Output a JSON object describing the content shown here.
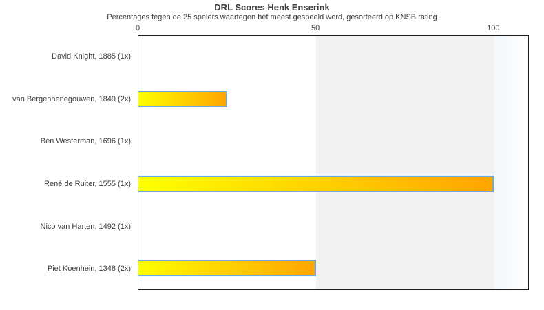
{
  "chart_data": {
    "type": "bar",
    "orientation": "horizontal",
    "title": "DRL Scores Henk Enserink",
    "subtitle": "Percentages tegen de 25 spelers waartegen het meest gespeeld werd, gesorteerd op KNSB rating",
    "categories": [
      "David Knight, 1885 (1x)",
      "van Bergenhenegouwen, 1849 (2x)",
      "Ben Westerman, 1696 (1x)",
      "René de Ruiter, 1555 (1x)",
      "Nico van Harten, 1492 (1x)",
      "Piet Koenhein, 1348 (2x)"
    ],
    "values": [
      0,
      25,
      0,
      100,
      0,
      50
    ],
    "xticks": [
      0,
      50,
      100
    ],
    "xlim": [
      0,
      110
    ],
    "grid": false,
    "legend": "none",
    "axis_position": "top",
    "colors": {
      "bar_gradient_start": "#ffff00",
      "bar_gradient_end": "#ffa500",
      "bar_border": "#6fa8dc",
      "band_0_50": "#ffffff",
      "band_50_100": "#f2f2f2",
      "band_over_100_start": "#f3f8fc",
      "band_over_100_end": "#ffffff",
      "plot_border": "#1a1a1a",
      "text": "#3d3d3d"
    }
  }
}
